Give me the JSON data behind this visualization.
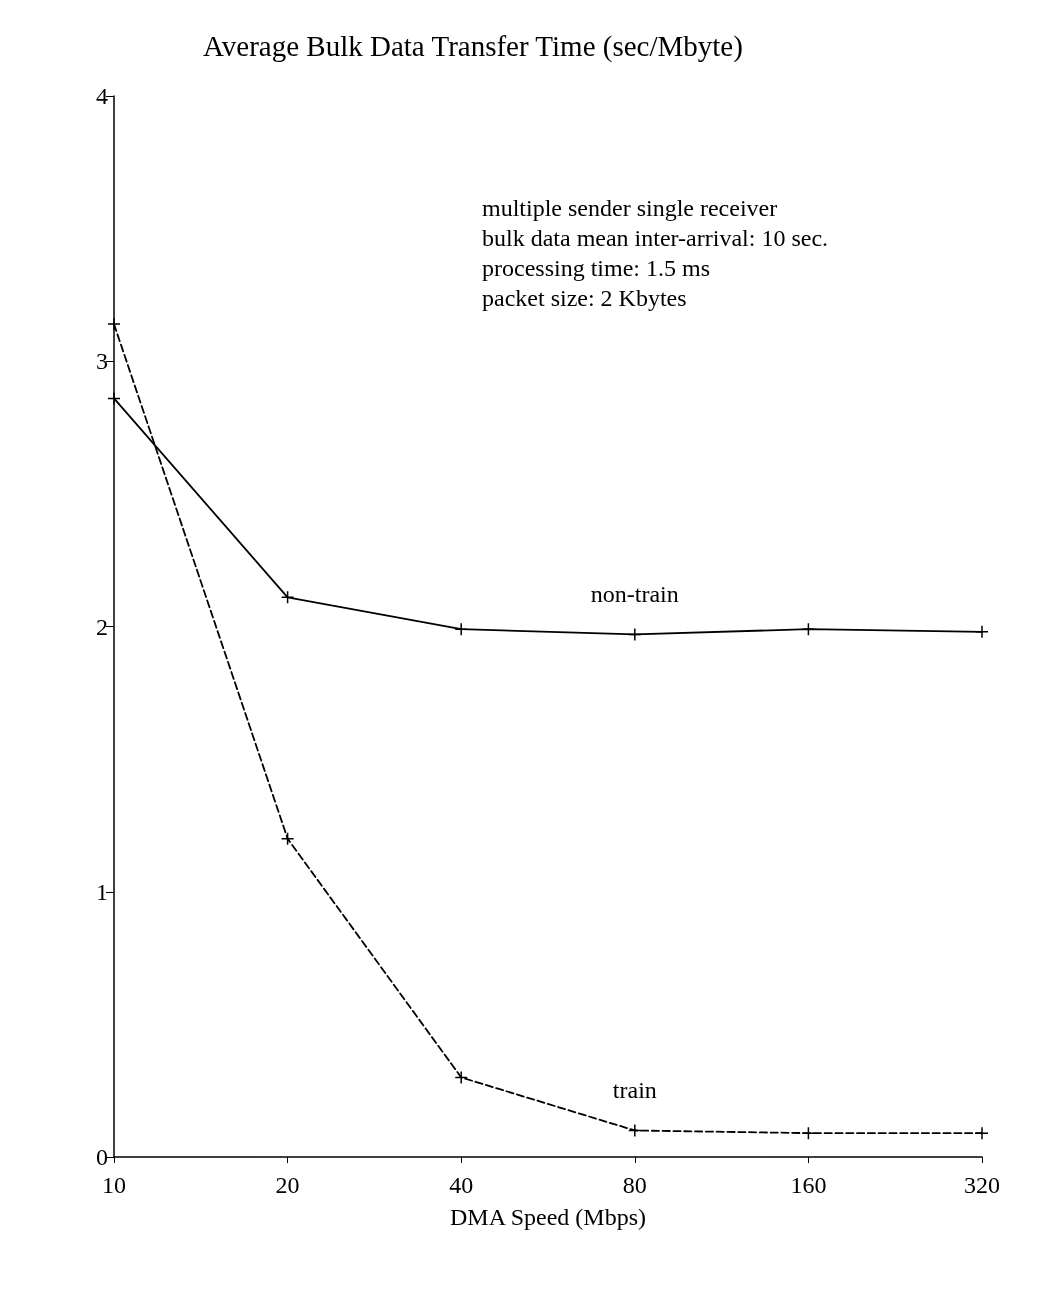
{
  "chart_data": {
    "type": "line",
    "title": "Average Bulk Data Transfer Time (sec/Mbyte)",
    "xlabel": "DMA Speed (Mbps)",
    "categories": [
      "10",
      "20",
      "40",
      "80",
      "160",
      "320"
    ],
    "series": [
      {
        "name": "non-train",
        "color": "#000000",
        "line_style": "solid",
        "values": [
          2.86,
          2.11,
          1.99,
          1.97,
          1.99,
          1.98
        ]
      },
      {
        "name": "train",
        "color": "#000000",
        "line_style": "dashed",
        "values": [
          3.14,
          1.2,
          0.3,
          0.1,
          0.09,
          0.09
        ]
      }
    ],
    "ylim": [
      0,
      4
    ],
    "yticks": [
      0,
      1,
      2,
      3,
      4
    ],
    "marker": "cross",
    "annotations": [
      "multiple sender single receiver",
      "bulk data mean inter-arrival: 10 sec.",
      "processing time: 1.5 ms",
      "packet size: 2 Kbytes"
    ]
  }
}
